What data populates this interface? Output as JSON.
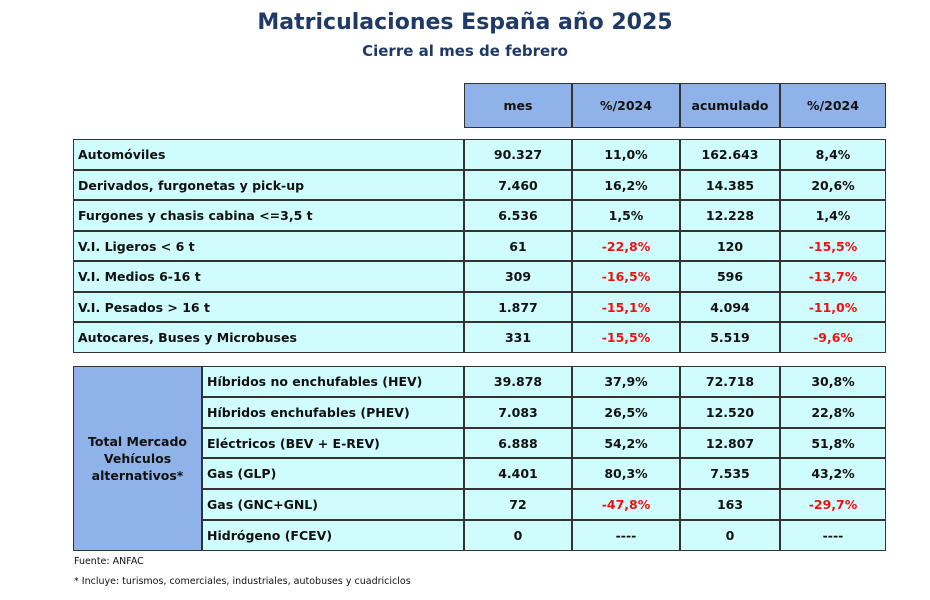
{
  "title": "Matriculaciones España año 2025",
  "subtitle": "Cierre al mes de febrero",
  "headers": [
    "mes",
    "%/2024",
    "acumulado",
    "%/2024"
  ],
  "section1": [
    {
      "label": "Automóviles",
      "mes": "90.327",
      "pct_mes": "11,0%",
      "acumulado": "162.643",
      "pct_acum": "8,4%",
      "neg_mes": false,
      "neg_acum": false
    },
    {
      "label": "Derivados, furgonetas y pick-up",
      "mes": "7.460",
      "pct_mes": "16,2%",
      "acumulado": "14.385",
      "pct_acum": "20,6%",
      "neg_mes": false,
      "neg_acum": false
    },
    {
      "label": "Furgones y chasis cabina <=3,5 t",
      "mes": "6.536",
      "pct_mes": "1,5%",
      "acumulado": "12.228",
      "pct_acum": "1,4%",
      "neg_mes": false,
      "neg_acum": false
    },
    {
      "label": "V.I. Ligeros < 6 t",
      "mes": "61",
      "pct_mes": "-22,8%",
      "acumulado": "120",
      "pct_acum": "-15,5%",
      "neg_mes": true,
      "neg_acum": true
    },
    {
      "label": "V.I. Medios 6-16 t",
      "mes": "309",
      "pct_mes": "-16,5%",
      "acumulado": "596",
      "pct_acum": "-13,7%",
      "neg_mes": true,
      "neg_acum": true
    },
    {
      "label": "V.I. Pesados > 16 t",
      "mes": "1.877",
      "pct_mes": "-15,1%",
      "acumulado": "4.094",
      "pct_acum": "-11,0%",
      "neg_mes": true,
      "neg_acum": true
    },
    {
      "label": "Autocares, Buses y Microbuses",
      "mes": "331",
      "pct_mes": "-15,5%",
      "acumulado": "5.519",
      "pct_acum": "-9,6%",
      "neg_mes": true,
      "neg_acum": true
    }
  ],
  "section2_group_label": "Total Mercado Vehículos alternativos*",
  "section2": [
    {
      "label": "Híbridos no enchufables (HEV)",
      "mes": "39.878",
      "pct_mes": "37,9%",
      "acumulado": "72.718",
      "pct_acum": "30,8%",
      "neg_mes": false,
      "neg_acum": false
    },
    {
      "label": "Híbridos enchufables (PHEV)",
      "mes": "7.083",
      "pct_mes": "26,5%",
      "acumulado": "12.520",
      "pct_acum": "22,8%",
      "neg_mes": false,
      "neg_acum": false
    },
    {
      "label": "Eléctricos (BEV + E-REV)",
      "mes": "6.888",
      "pct_mes": "54,2%",
      "acumulado": "12.807",
      "pct_acum": "51,8%",
      "neg_mes": false,
      "neg_acum": false
    },
    {
      "label": "Gas (GLP)",
      "mes": "4.401",
      "pct_mes": "80,3%",
      "acumulado": "7.535",
      "pct_acum": "43,2%",
      "neg_mes": false,
      "neg_acum": false
    },
    {
      "label": "Gas (GNC+GNL)",
      "mes": "72",
      "pct_mes": "-47,8%",
      "acumulado": "163",
      "pct_acum": "-29,7%",
      "neg_mes": true,
      "neg_acum": true
    },
    {
      "label": "Hidrógeno (FCEV)",
      "mes": "0",
      "pct_mes": "----",
      "acumulado": "0",
      "pct_acum": "----",
      "neg_mes": false,
      "neg_acum": false
    }
  ],
  "source": "Fuente: ANFAC",
  "footnote": "* Incluye: turismos, comerciales, industriales, autobuses y cuadriciclos",
  "colors": {
    "header_bg": "#8fb3e8",
    "cell_bg": "#cffcfc",
    "title": "#1f3a66",
    "negative": "#ee1111"
  }
}
